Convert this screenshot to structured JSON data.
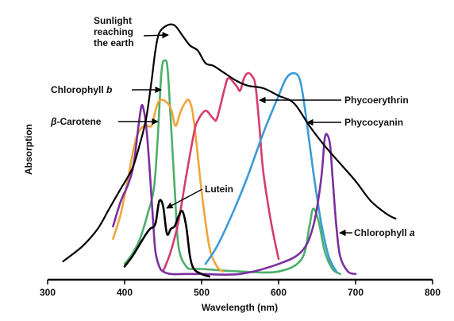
{
  "chart_data": {
    "type": "line",
    "title": "",
    "xlabel": "Wavelength (nm)",
    "ylabel": "Absorption",
    "xlim": [
      300,
      800
    ],
    "ylim": [
      0,
      1
    ],
    "xticks": [
      "300",
      "400",
      "500",
      "600",
      "700",
      "800"
    ],
    "grid": false,
    "legend": "none (curves labeled directly with arrows)",
    "y_units": "relative absorption (no numeric scale)",
    "series": [
      {
        "name": "Sunlight reaching the earth",
        "color": "#000000",
        "x": [
          320,
          345,
          365,
          380,
          395,
          410,
          420,
          428,
          435,
          440,
          445,
          455,
          465,
          475,
          485,
          495,
          505,
          515,
          525,
          545,
          560,
          580,
          600,
          620,
          640,
          660,
          680,
          700,
          720,
          740,
          752
        ],
        "y": [
          0.06,
          0.12,
          0.19,
          0.27,
          0.35,
          0.43,
          0.53,
          0.63,
          0.78,
          0.9,
          0.97,
          1.0,
          1.0,
          0.96,
          0.92,
          0.9,
          0.85,
          0.84,
          0.82,
          0.78,
          0.76,
          0.75,
          0.72,
          0.69,
          0.6,
          0.52,
          0.45,
          0.38,
          0.3,
          0.25,
          0.23
        ]
      },
      {
        "name": "Chlorophyll b",
        "color": "#4caf6a",
        "x": [
          400,
          410,
          420,
          430,
          438,
          443,
          448,
          453,
          456,
          460,
          465,
          470,
          480,
          490,
          500,
          550,
          600,
          630,
          640,
          645,
          652,
          660,
          670,
          680
        ],
        "y": [
          0.05,
          0.09,
          0.15,
          0.25,
          0.35,
          0.55,
          0.82,
          0.86,
          0.82,
          0.62,
          0.35,
          0.12,
          0.04,
          0.03,
          0.03,
          0.02,
          0.02,
          0.07,
          0.2,
          0.27,
          0.22,
          0.1,
          0.03,
          0.01
        ]
      },
      {
        "name": "β-Carotene",
        "color": "#f0a53a",
        "x": [
          385,
          395,
          405,
          415,
          425,
          435,
          440,
          445,
          452,
          460,
          466,
          472,
          478,
          484,
          490,
          500,
          510,
          520,
          528
        ],
        "y": [
          0.15,
          0.25,
          0.4,
          0.55,
          0.6,
          0.6,
          0.66,
          0.7,
          0.7,
          0.67,
          0.6,
          0.65,
          0.69,
          0.7,
          0.62,
          0.34,
          0.12,
          0.04,
          0.02
        ]
      },
      {
        "name": "Phycoerythrin",
        "color": "#d63c6e",
        "x": [
          450,
          460,
          470,
          480,
          490,
          495,
          505,
          515,
          520,
          530,
          535,
          545,
          550,
          555,
          560,
          565,
          570,
          575,
          580,
          590,
          600
        ],
        "y": [
          0.02,
          0.1,
          0.22,
          0.4,
          0.57,
          0.62,
          0.66,
          0.63,
          0.63,
          0.75,
          0.79,
          0.76,
          0.74,
          0.79,
          0.81,
          0.8,
          0.76,
          0.6,
          0.42,
          0.22,
          0.07
        ]
      },
      {
        "name": "Phycocyanin",
        "color": "#3b9ad9",
        "x": [
          505,
          520,
          540,
          560,
          580,
          600,
          610,
          620,
          628,
          635,
          645,
          655,
          665,
          675
        ],
        "y": [
          0.05,
          0.12,
          0.25,
          0.4,
          0.57,
          0.72,
          0.79,
          0.81,
          0.78,
          0.65,
          0.42,
          0.22,
          0.08,
          0.02
        ]
      },
      {
        "name": "Chlorophyll a",
        "color": "#7b2f9e",
        "x": [
          385,
          395,
          405,
          412,
          418,
          422,
          425,
          428,
          432,
          437,
          440,
          445,
          450,
          460,
          480,
          500,
          550,
          600,
          630,
          645,
          655,
          660,
          664,
          667,
          670,
          675,
          680,
          690,
          700
        ],
        "y": [
          0.2,
          0.3,
          0.37,
          0.45,
          0.6,
          0.68,
          0.66,
          0.6,
          0.45,
          0.22,
          0.1,
          0.04,
          0.02,
          0.01,
          0.01,
          0.01,
          0.01,
          0.05,
          0.1,
          0.2,
          0.38,
          0.55,
          0.56,
          0.52,
          0.4,
          0.2,
          0.08,
          0.02,
          0.01
        ]
      },
      {
        "name": "Lutein",
        "color": "#000000",
        "x": [
          400,
          410,
          420,
          428,
          433,
          440,
          445,
          450,
          455,
          460,
          465,
          470,
          475,
          480,
          485,
          490,
          500,
          510
        ],
        "y": [
          0.04,
          0.08,
          0.13,
          0.17,
          0.19,
          0.21,
          0.3,
          0.28,
          0.17,
          0.19,
          0.2,
          0.24,
          0.26,
          0.2,
          0.08,
          0.03,
          0.01,
          0.0
        ]
      }
    ],
    "annotations": [
      {
        "lines": [
          "Sunlight",
          "reaching",
          "the earth"
        ],
        "target": "Sunlight reaching the earth"
      },
      {
        "lines": [
          "Chlorophyll b"
        ],
        "target": "Chlorophyll b"
      },
      {
        "lines": [
          "β-Carotene"
        ],
        "target": "β-Carotene"
      },
      {
        "lines": [
          "Lutein"
        ],
        "target": "Lutein"
      },
      {
        "lines": [
          "Phycoerythrin"
        ],
        "target": "Phycoerythrin"
      },
      {
        "lines": [
          "Phycocyanin"
        ],
        "target": "Phycocyanin"
      },
      {
        "lines": [
          "Chlorophyll a"
        ],
        "target": "Chlorophyll a"
      }
    ]
  }
}
